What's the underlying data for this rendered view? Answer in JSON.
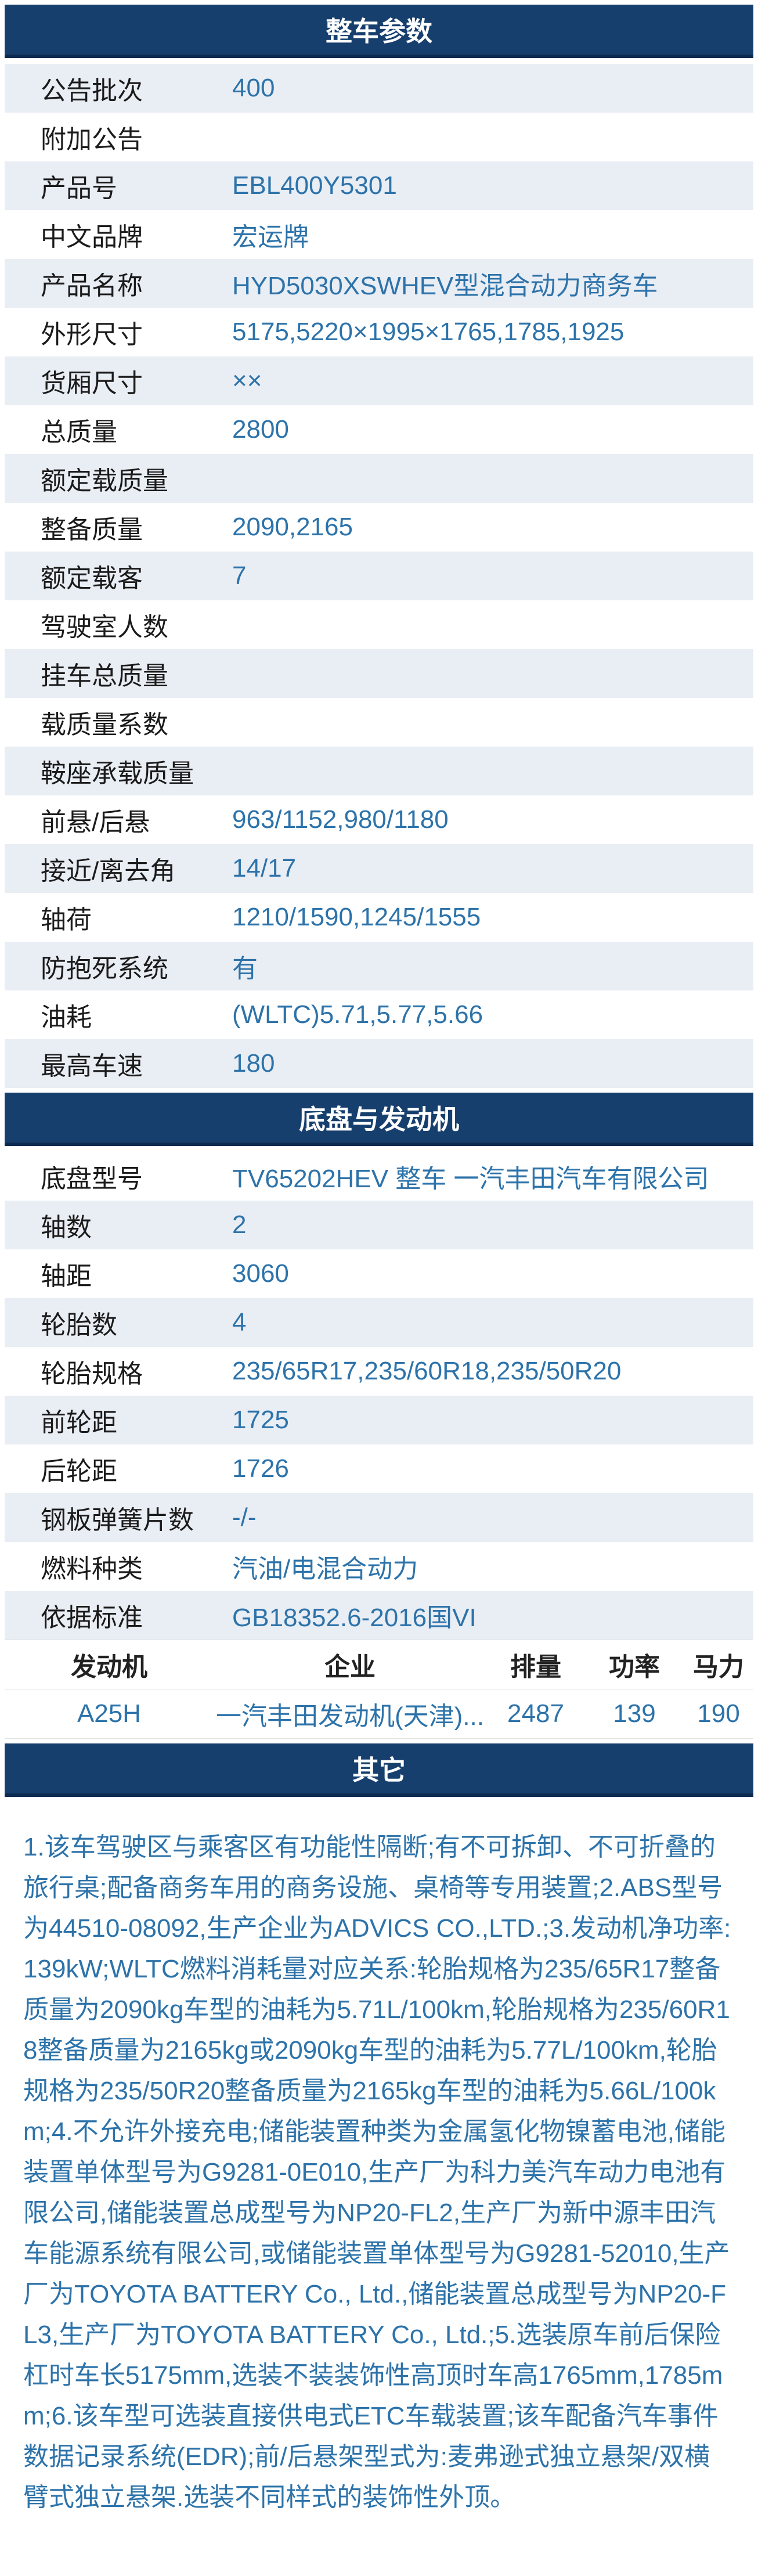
{
  "colors": {
    "header_bg": "#163f6e",
    "header_border": "#0d2b50",
    "header_text": "#ffffff",
    "stripe_bg": "#e9edf4",
    "label_color": "#1b1b1b",
    "value_color": "#2d73aa"
  },
  "sections": {
    "vehicle": {
      "title": "整车参数",
      "rows": [
        {
          "label": "公告批次",
          "value": "400"
        },
        {
          "label": "附加公告",
          "value": ""
        },
        {
          "label": "产品号",
          "value": "EBL400Y5301"
        },
        {
          "label": "中文品牌",
          "value": "宏运牌"
        },
        {
          "label": "产品名称",
          "value": "HYD5030XSWHEV型混合动力商务车"
        },
        {
          "label": "外形尺寸",
          "value": "5175,5220×1995×1765,1785,1925"
        },
        {
          "label": "货厢尺寸",
          "value": "××"
        },
        {
          "label": "总质量",
          "value": "2800"
        },
        {
          "label": "额定载质量",
          "value": ""
        },
        {
          "label": "整备质量",
          "value": "2090,2165"
        },
        {
          "label": "额定载客",
          "value": "7"
        },
        {
          "label": "驾驶室人数",
          "value": ""
        },
        {
          "label": "挂车总质量",
          "value": ""
        },
        {
          "label": "载质量系数",
          "value": ""
        },
        {
          "label": "鞍座承载质量",
          "value": ""
        },
        {
          "label": "前悬/后悬",
          "value": "963/1152,980/1180"
        },
        {
          "label": "接近/离去角",
          "value": "14/17"
        },
        {
          "label": "轴荷",
          "value": "1210/1590,1245/1555"
        },
        {
          "label": "防抱死系统",
          "value": "有"
        },
        {
          "label": "油耗",
          "value": "(WLTC)5.71,5.77,5.66"
        },
        {
          "label": "最高车速",
          "value": "180"
        }
      ]
    },
    "chassis": {
      "title": "底盘与发动机",
      "rows": [
        {
          "label": "底盘型号",
          "value": "TV65202HEV 整车 一汽丰田汽车有限公司"
        },
        {
          "label": "轴数",
          "value": "2"
        },
        {
          "label": "轴距",
          "value": "3060"
        },
        {
          "label": "轮胎数",
          "value": "4"
        },
        {
          "label": "轮胎规格",
          "value": "235/65R17,235/60R18,235/50R20"
        },
        {
          "label": "前轮距",
          "value": "1725"
        },
        {
          "label": "后轮距",
          "value": "1726"
        },
        {
          "label": "钢板弹簧片数",
          "value": "-/-"
        },
        {
          "label": "燃料种类",
          "value": "汽油/电混合动力"
        },
        {
          "label": "依据标准",
          "value": "GB18352.6-2016国VI"
        }
      ]
    },
    "engine_table": {
      "headers": [
        "发动机",
        "企业",
        "排量",
        "功率",
        "马力"
      ],
      "rows": [
        {
          "engine": "A25H",
          "company": "一汽丰田发动机(天津)...",
          "displacement": "2487",
          "power": "139",
          "horsepower": "190"
        }
      ]
    },
    "other": {
      "title": "其它",
      "text": "1.该车驾驶区与乘客区有功能性隔断;有不可拆卸、不可折叠的旅行桌;配备商务车用的商务设施、桌椅等专用装置;2.ABS型号为44510-08092,生产企业为ADVICS CO.,LTD.;3.发动机净功率:139kW;WLTC燃料消耗量对应关系:轮胎规格为235/65R17整备质量为2090kg车型的油耗为5.71L/100km,轮胎规格为235/60R18整备质量为2165kg或2090kg车型的油耗为5.77L/100km,轮胎规格为235/50R20整备质量为2165kg车型的油耗为5.66L/100km;4.不允许外接充电;储能装置种类为金属氢化物镍蓄电池,储能装置单体型号为G9281-0E010,生产厂为科力美汽车动力电池有限公司,储能装置总成型号为NP20-FL2,生产厂为新中源丰田汽车能源系统有限公司,或储能装置单体型号为G9281-52010,生产厂为TOYOTA BATTERY Co., Ltd.,储能装置总成型号为NP20-FL3,生产厂为TOYOTA BATTERY Co., Ltd.;5.选装原车前后保险杠时车长5175mm,选装不装装饰性高顶时车高1765mm,1785mm;6.该车型可选装直接供电式ETC车载装置;该车配备汽车事件数据记录系统(EDR);前/后悬架型式为:麦弗逊式独立悬架/双横臂式独立悬架.选装不同样式的装饰性外顶。"
    }
  }
}
